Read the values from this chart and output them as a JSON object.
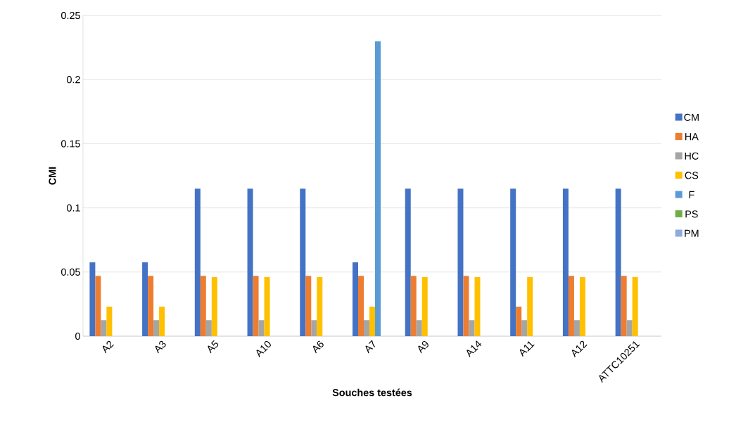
{
  "chart_data": {
    "type": "bar",
    "xlabel": "Souches testées",
    "ylabel": "CMI",
    "categories": [
      "A2",
      "A3",
      "A5",
      "A10",
      "A6",
      "A7",
      "A9",
      "A14",
      "A11",
      "A12",
      "ATTC10251"
    ],
    "series": [
      {
        "name": "CM",
        "color": "#4472c4",
        "values": [
          0.0575,
          0.0575,
          0.115,
          0.115,
          0.115,
          0.0575,
          0.115,
          0.115,
          0.115,
          0.115,
          0.115
        ]
      },
      {
        "name": "HA",
        "color": "#ed7d31",
        "values": [
          0.047,
          0.047,
          0.047,
          0.047,
          0.047,
          0.047,
          0.047,
          0.047,
          0.023,
          0.047,
          0.047
        ]
      },
      {
        "name": "HC",
        "color": "#a5a5a5",
        "values": [
          0.0125,
          0.0125,
          0.0125,
          0.0125,
          0.0125,
          0.0125,
          0.0125,
          0.0125,
          0.0125,
          0.0125,
          0.0125
        ]
      },
      {
        "name": "CS",
        "color": "#ffc000",
        "values": [
          0.023,
          0.023,
          0.046,
          0.046,
          0.046,
          0.023,
          0.046,
          0.046,
          0.046,
          0.046,
          0.046
        ]
      },
      {
        "name": "F",
        "color": "#5b9bd5",
        "values": [
          0,
          0,
          0,
          0,
          0,
          0.23,
          0,
          0,
          0,
          0,
          0
        ]
      },
      {
        "name": "PS",
        "color": "#70ad47",
        "values": [
          0,
          0,
          0,
          0,
          0,
          0,
          0,
          0,
          0,
          0,
          0
        ]
      },
      {
        "name": "PM",
        "color": "#8faadc",
        "values": [
          0,
          0,
          0,
          0,
          0,
          0,
          0,
          0,
          0,
          0,
          0
        ]
      }
    ],
    "ylim": [
      0,
      0.25
    ],
    "yticks": [
      0,
      0.05,
      0.1,
      0.15,
      0.2,
      0.25
    ],
    "grid": "y",
    "legend": "right"
  }
}
